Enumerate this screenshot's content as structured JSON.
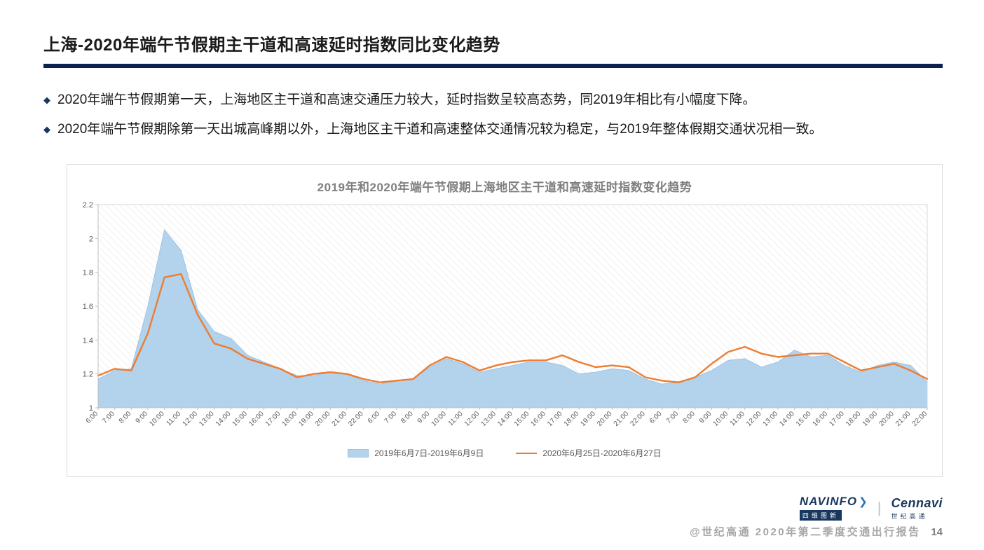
{
  "page": {
    "title": "上海-2020年端午节假期主干道和高速延时指数同比变化趋势",
    "bullets": [
      "2020年端午节假期第一天，上海地区主干道和高速交通压力较大，延时指数呈较高态势，同2019年相比有小幅度下降。",
      "2020年端午节假期除第一天出城高峰期以外，上海地区主干道和高速整体交通情况较为稳定，与2019年整体假期交通状况相一致。"
    ]
  },
  "chart_data": {
    "type": "area",
    "title": "2019年和2020年端午节假期上海地区主干道和高速延时指数变化趋势",
    "xlabel": "",
    "ylabel": "",
    "ylim": [
      1,
      2.2
    ],
    "yticks": [
      1,
      1.2,
      1.4,
      1.6,
      1.8,
      2,
      2.2
    ],
    "grid": false,
    "plot_background": "diagonal-hatch",
    "legend_position": "bottom",
    "x": [
      "6:00",
      "7:00",
      "8:00",
      "9:00",
      "10:00",
      "11:00",
      "12:00",
      "13:00",
      "14:00",
      "15:00",
      "16:00",
      "17:00",
      "18:00",
      "19:00",
      "20:00",
      "21:00",
      "22:00",
      "6:00",
      "7:00",
      "8:00",
      "9:00",
      "10:00",
      "11:00",
      "12:00",
      "13:00",
      "14:00",
      "15:00",
      "16:00",
      "17:00",
      "18:00",
      "19:00",
      "20:00",
      "21:00",
      "22:00",
      "6:00",
      "7:00",
      "8:00",
      "9:00",
      "10:00",
      "11:00",
      "12:00",
      "13:00",
      "14:00",
      "15:00",
      "16:00",
      "17:00",
      "18:00",
      "19:00",
      "20:00",
      "21:00",
      "22:00"
    ],
    "series": [
      {
        "name": "2019年6月7日-2019年6月9日",
        "type": "area",
        "color": "#b3d2ec",
        "edge_color": "#9dc3e6",
        "values": [
          1.17,
          1.22,
          1.23,
          1.6,
          2.05,
          1.93,
          1.58,
          1.45,
          1.41,
          1.31,
          1.27,
          1.23,
          1.19,
          1.19,
          1.21,
          1.2,
          1.16,
          1.14,
          1.16,
          1.17,
          1.24,
          1.29,
          1.26,
          1.21,
          1.23,
          1.25,
          1.27,
          1.27,
          1.25,
          1.2,
          1.21,
          1.23,
          1.22,
          1.17,
          1.14,
          1.15,
          1.18,
          1.22,
          1.28,
          1.29,
          1.24,
          1.27,
          1.34,
          1.3,
          1.31,
          1.25,
          1.21,
          1.25,
          1.27,
          1.25,
          1.15
        ]
      },
      {
        "name": "2020年6月25日-2020年6月27日",
        "type": "line",
        "color": "#ed7d31",
        "values": [
          1.19,
          1.23,
          1.22,
          1.44,
          1.77,
          1.79,
          1.55,
          1.38,
          1.35,
          1.29,
          1.26,
          1.23,
          1.18,
          1.2,
          1.21,
          1.2,
          1.17,
          1.15,
          1.16,
          1.17,
          1.25,
          1.3,
          1.27,
          1.22,
          1.25,
          1.27,
          1.28,
          1.28,
          1.31,
          1.27,
          1.24,
          1.25,
          1.24,
          1.18,
          1.16,
          1.15,
          1.18,
          1.26,
          1.33,
          1.36,
          1.32,
          1.3,
          1.31,
          1.32,
          1.32,
          1.27,
          1.22,
          1.24,
          1.26,
          1.22,
          1.17
        ]
      }
    ]
  },
  "footer": {
    "logo_navinfo": "NAVINFO",
    "logo_navinfo_sub": "四维图新",
    "logo_cennavi": "Cennavi",
    "logo_cennavi_sub": "世纪高通",
    "caption": "@世纪高通  2020年第二季度交通出行报告",
    "page_number": "14"
  },
  "colors": {
    "accent_navy": "#0d2050",
    "bullet_diamond": "#17375e",
    "area_fill": "#b3d2ec",
    "line_orange": "#ed7d31",
    "chart_title_gray": "#7f7f7f",
    "footer_gray": "#a6a6a6"
  }
}
